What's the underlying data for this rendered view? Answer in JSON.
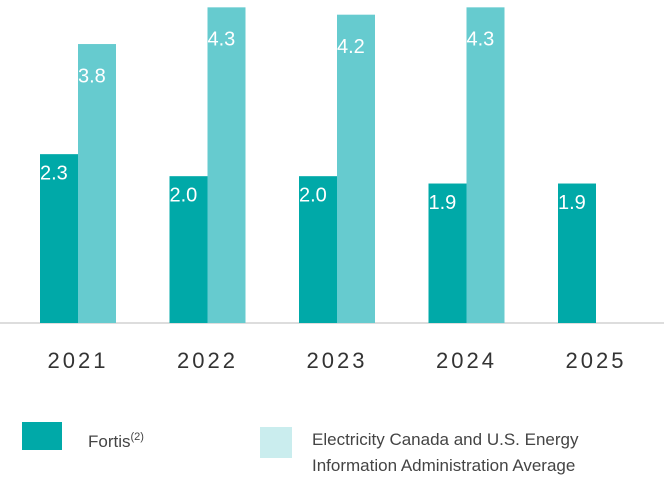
{
  "chart_data": {
    "type": "bar",
    "categories": [
      "2021",
      "2022",
      "2023",
      "2024",
      "2025"
    ],
    "series": [
      {
        "name": "Fortis",
        "footnote": "(2)",
        "color": "#00a9a8",
        "values": [
          2.3,
          2.0,
          2.0,
          1.9,
          1.9
        ],
        "value_labels": [
          "2.3",
          "2.0",
          "2.0",
          "1.9",
          "1.9"
        ]
      },
      {
        "name": "Electricity Canada and U.S. Energy Information Administration Average",
        "color": "#66cbcf",
        "values": [
          3.8,
          4.3,
          4.2,
          4.3,
          null
        ],
        "value_labels": [
          "3.8",
          "4.3",
          "4.2",
          "4.3",
          null
        ]
      }
    ],
    "ylim": [
      0,
      4.4
    ]
  }
}
